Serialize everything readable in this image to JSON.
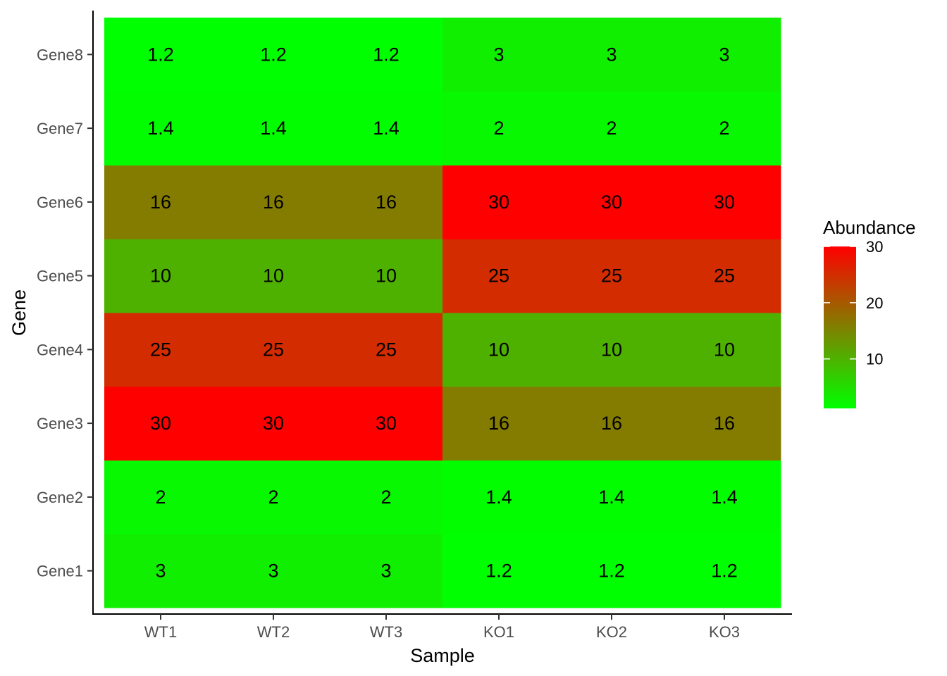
{
  "chart_data": {
    "type": "heatmap",
    "title": "",
    "xlabel": "Sample",
    "ylabel": "Gene",
    "x": [
      "WT1",
      "WT2",
      "WT3",
      "KO1",
      "KO2",
      "KO3"
    ],
    "y": [
      "Gene1",
      "Gene2",
      "Gene3",
      "Gene4",
      "Gene5",
      "Gene6",
      "Gene7",
      "Gene8"
    ],
    "values": [
      [
        3,
        3,
        3,
        1.2,
        1.2,
        1.2
      ],
      [
        2,
        2,
        2,
        1.4,
        1.4,
        1.4
      ],
      [
        30,
        30,
        30,
        16,
        16,
        16
      ],
      [
        25,
        25,
        25,
        10,
        10,
        10
      ],
      [
        10,
        10,
        10,
        25,
        25,
        25
      ],
      [
        16,
        16,
        16,
        30,
        30,
        30
      ],
      [
        1.4,
        1.4,
        1.4,
        2,
        2,
        2
      ],
      [
        1.2,
        1.2,
        1.2,
        3,
        3,
        3
      ]
    ],
    "cell_labels": [
      [
        "3",
        "3",
        "3",
        "1.2",
        "1.2",
        "1.2"
      ],
      [
        "2",
        "2",
        "2",
        "1.4",
        "1.4",
        "1.4"
      ],
      [
        "30",
        "30",
        "30",
        "16",
        "16",
        "16"
      ],
      [
        "25",
        "25",
        "25",
        "10",
        "10",
        "10"
      ],
      [
        "10",
        "10",
        "10",
        "25",
        "25",
        "25"
      ],
      [
        "16",
        "16",
        "16",
        "30",
        "30",
        "30"
      ],
      [
        "1.4",
        "1.4",
        "1.4",
        "2",
        "2",
        "2"
      ],
      [
        "1.2",
        "1.2",
        "1.2",
        "3",
        "3",
        "3"
      ]
    ],
    "legend": {
      "title": "Abundance",
      "placement": "right",
      "range": [
        1.2,
        30
      ],
      "ticks": [
        10,
        20,
        30
      ],
      "tick_labels": [
        "10",
        "20",
        "30"
      ]
    },
    "colors": {
      "low": "#00ff00",
      "high": "#ff0000"
    },
    "grid": false
  }
}
